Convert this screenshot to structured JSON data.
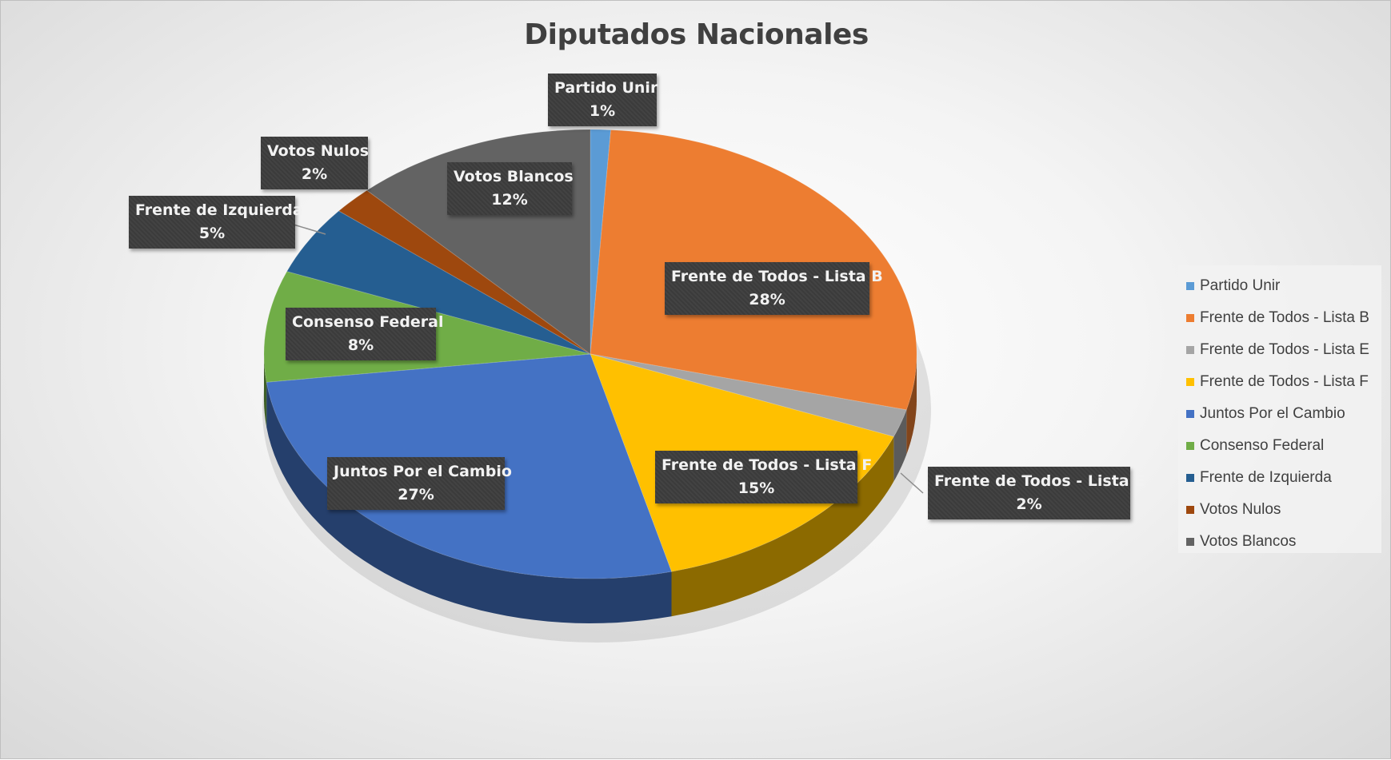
{
  "chart_data": {
    "type": "pie",
    "title": "Diputados Nacionales",
    "categories": [
      "Partido Unir",
      "Frente de Todos - Lista B",
      "Frente de Todos - Lista E",
      "Frente de Todos - Lista F",
      "Juntos Por el Cambio",
      "Consenso Federal",
      "Frente de Izquierda",
      "Votos Nulos",
      "Votos Blancos"
    ],
    "values": [
      1,
      28,
      2,
      15,
      27,
      8,
      5,
      2,
      12
    ],
    "value_labels": [
      "1%",
      "28%",
      "2%",
      "15%",
      "27%",
      "8%",
      "5%",
      "2%",
      "12%"
    ],
    "colors": [
      "#5b9bd5",
      "#ed7d31",
      "#a5a5a5",
      "#ffc000",
      "#4472c4",
      "#70ad47",
      "#255e91",
      "#9e480e",
      "#636363"
    ],
    "legend_position": "right",
    "style": "3d"
  }
}
